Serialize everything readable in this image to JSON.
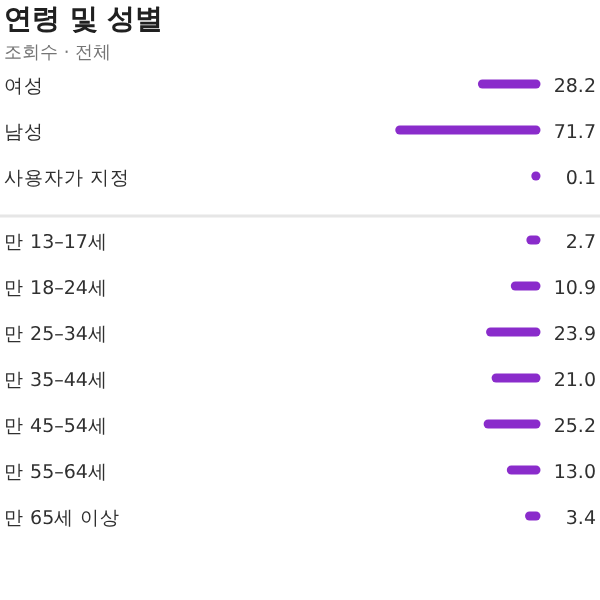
{
  "chart_data": {
    "type": "bar",
    "orientation": "horizontal",
    "title": "연령 및 성별",
    "subtitle": "조회수 · 전체",
    "categories": [
      "여성",
      "남성",
      "사용자가 지정",
      "만 13–17세",
      "만 18–24세",
      "만 25–34세",
      "만 35–44세",
      "만 45–54세",
      "만 55–64세",
      "만 65세 이상"
    ],
    "values": [
      28.2,
      71.7,
      0.1,
      2.7,
      10.9,
      23.9,
      21.0,
      25.2,
      13.0,
      3.4
    ],
    "value_labels": [
      "28.2",
      "71.7",
      "0.1",
      "2.7",
      "10.9",
      "23.9",
      "21.0",
      "25.2",
      "13.0",
      "3.4"
    ],
    "color": "#8a2ccb",
    "tick_labels": false
  }
}
